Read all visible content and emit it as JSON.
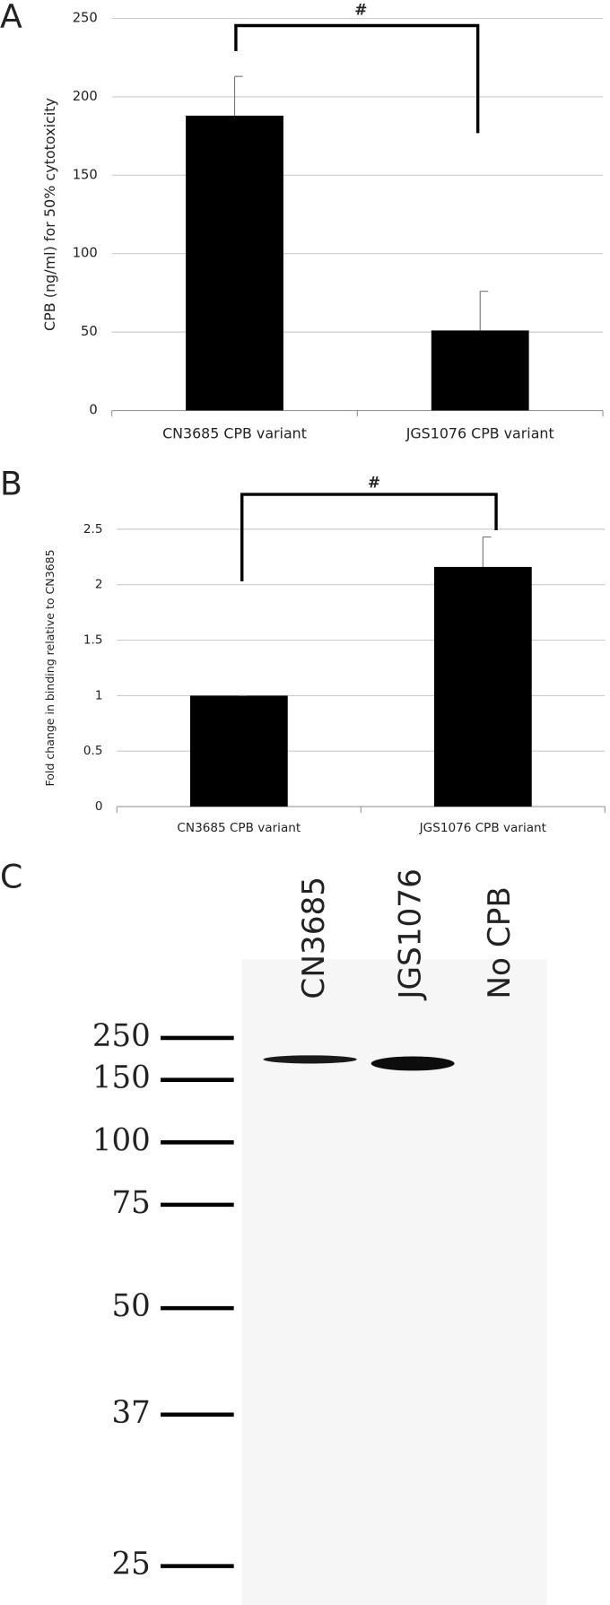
{
  "chart_data": [
    {
      "type": "bar",
      "panel": "A",
      "ylabel": "CPB (ng/ml) for 50% cytotoxicity",
      "categories": [
        "CN3685 CPB variant",
        "JGS1076 CPB variant"
      ],
      "values": [
        188,
        51
      ],
      "errors": [
        25,
        25
      ],
      "color": "#000000",
      "ylim": [
        0,
        250
      ],
      "yticks": [
        0,
        50,
        100,
        150,
        200,
        250
      ],
      "grid": true,
      "annotation": "#"
    },
    {
      "type": "bar",
      "panel": "B",
      "ylabel": "Fold change in binding relative to CN3685",
      "categories": [
        "CN3685 CPB variant",
        "JGS1076 CPB variant"
      ],
      "values": [
        1,
        2.16
      ],
      "errors": [
        0,
        0.27
      ],
      "color": "#000000",
      "ylim": [
        0,
        2.5
      ],
      "yticks": [
        0,
        0.5,
        1,
        1.5,
        2,
        2.5
      ],
      "grid": true,
      "annotation": "#"
    }
  ],
  "blot": {
    "panel": "C",
    "lanes": [
      "CN3685",
      "JGS1076",
      "No CPB"
    ],
    "markers": [
      "250",
      "150",
      "100",
      "75",
      "50",
      "37",
      "25"
    ]
  }
}
